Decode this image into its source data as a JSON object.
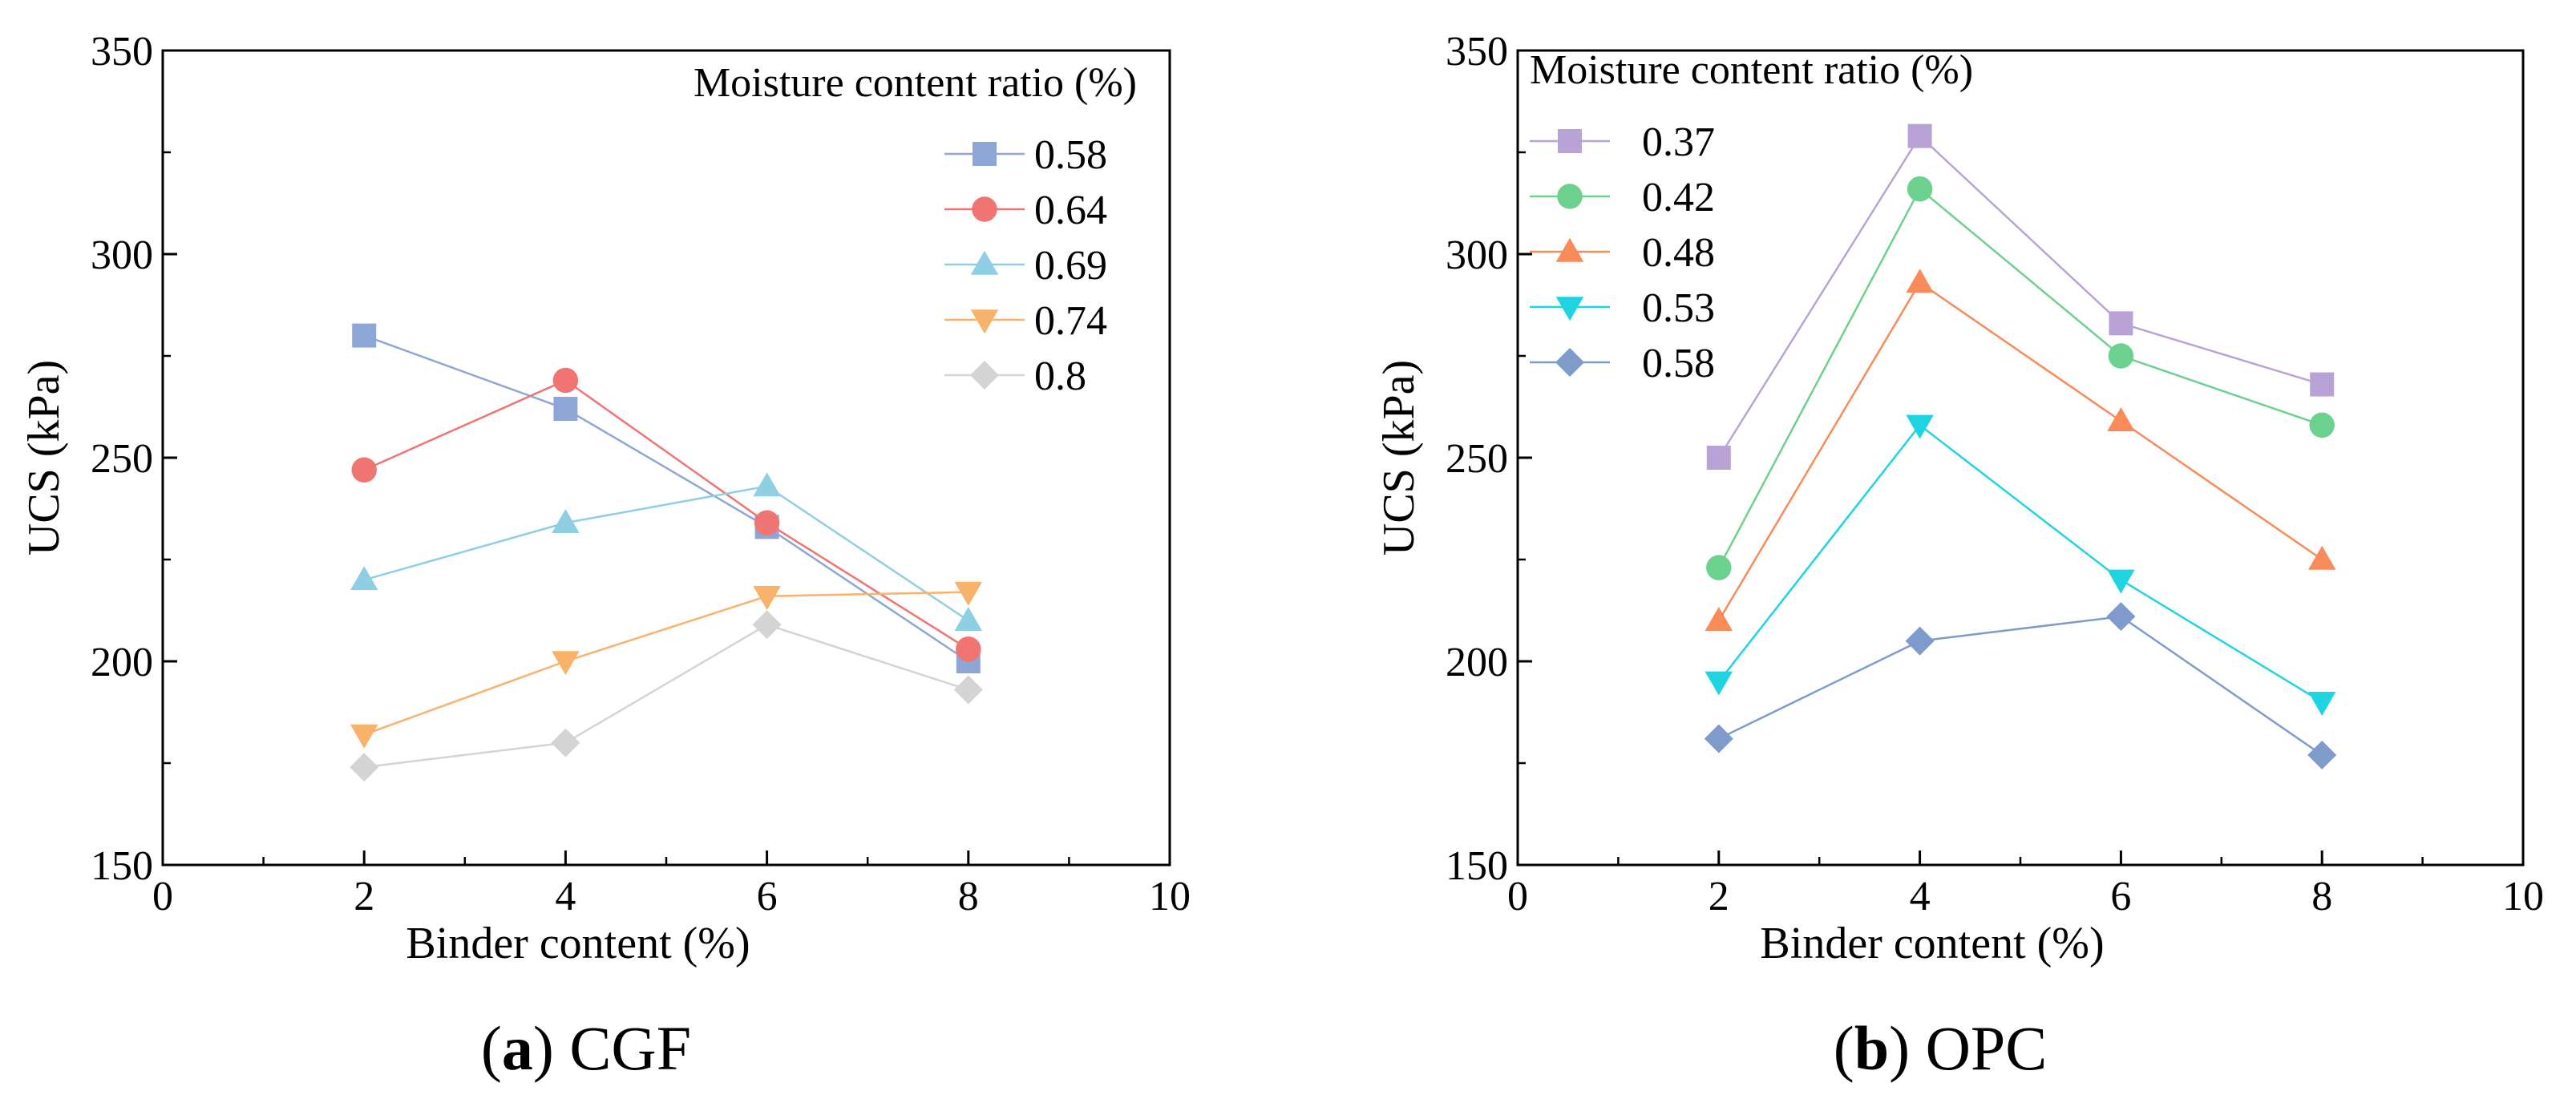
{
  "chart_data": [
    {
      "type": "line",
      "id": "cgf",
      "caption": {
        "letter": "a",
        "name": "CGF"
      },
      "xlabel": "Binder content (%)",
      "ylabel": "UCS (kPa)",
      "xlim": [
        0,
        10
      ],
      "ylim": [
        150,
        350
      ],
      "xticks": [
        0,
        2,
        4,
        6,
        8,
        10
      ],
      "yticks": [
        150,
        200,
        250,
        300,
        350
      ],
      "legend_title": "Moisture content ratio (%)",
      "legend_position": "top-right",
      "x": [
        2,
        4,
        6,
        8
      ],
      "series": [
        {
          "name": "0.58",
          "marker": "square",
          "color": "#8EA6D6",
          "values": [
            280,
            262,
            233,
            200
          ]
        },
        {
          "name": "0.64",
          "marker": "circle",
          "color": "#F07472",
          "values": [
            247,
            269,
            234,
            203
          ]
        },
        {
          "name": "0.69",
          "marker": "triangle-up",
          "color": "#8ECFE3",
          "values": [
            220,
            234,
            243,
            210
          ]
        },
        {
          "name": "0.74",
          "marker": "triangle-down",
          "color": "#F8B26A",
          "values": [
            182,
            200,
            216,
            217
          ]
        },
        {
          "name": "0.8",
          "marker": "diamond",
          "color": "#D4D4D4",
          "values": [
            174,
            180,
            209,
            193
          ]
        }
      ]
    },
    {
      "type": "line",
      "id": "opc",
      "caption": {
        "letter": "b",
        "name": "OPC"
      },
      "xlabel": "Binder content (%)",
      "ylabel": "UCS (kPa)",
      "xlim": [
        0,
        10
      ],
      "ylim": [
        150,
        350
      ],
      "xticks": [
        0,
        2,
        4,
        6,
        8,
        10
      ],
      "yticks": [
        150,
        200,
        250,
        300,
        350
      ],
      "legend_title": "Moisture content ratio (%)",
      "legend_position": "top-left",
      "x": [
        2,
        4,
        6,
        8
      ],
      "series": [
        {
          "name": "0.37",
          "marker": "square",
          "color": "#B9A3D6",
          "values": [
            250,
            329,
            283,
            268
          ]
        },
        {
          "name": "0.42",
          "marker": "circle",
          "color": "#6CD18E",
          "values": [
            223,
            316,
            275,
            258
          ]
        },
        {
          "name": "0.48",
          "marker": "triangle-up",
          "color": "#F98A5A",
          "values": [
            210,
            293,
            259,
            225
          ]
        },
        {
          "name": "0.53",
          "marker": "triangle-down",
          "color": "#1ED3E2",
          "values": [
            195,
            258,
            220,
            190
          ]
        },
        {
          "name": "0.58",
          "marker": "diamond",
          "color": "#7E9BCB",
          "values": [
            181,
            205,
            211,
            177
          ]
        }
      ]
    }
  ]
}
